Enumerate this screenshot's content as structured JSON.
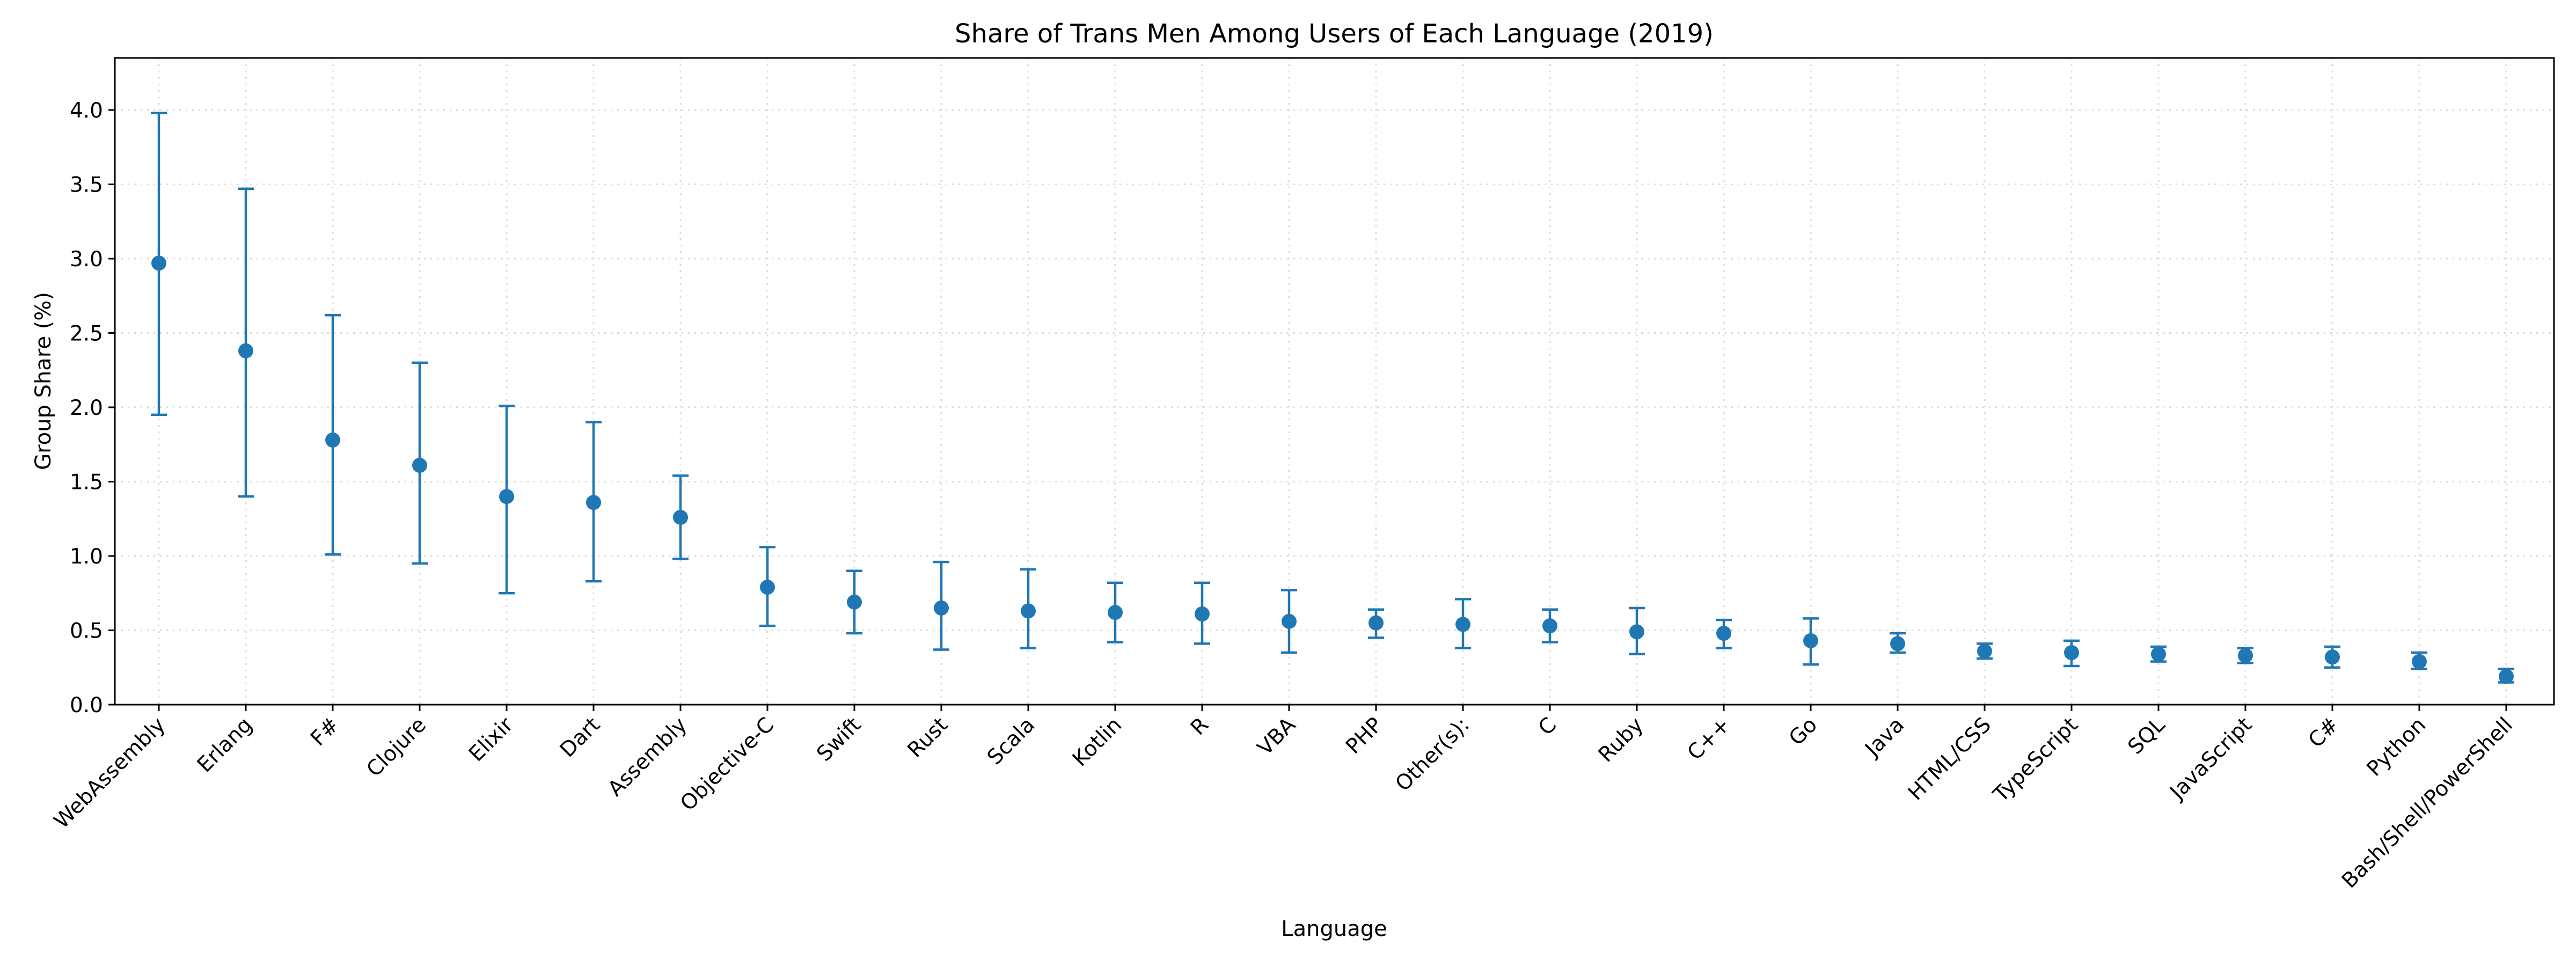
{
  "chart_data": {
    "type": "scatter",
    "title": "Share of Trans Men Among Users of Each Language (2019)",
    "xlabel": "Language",
    "ylabel": "Group Share (%)",
    "ylim": [
      0.0,
      4.35
    ],
    "yticks": [
      0.0,
      0.5,
      1.0,
      1.5,
      2.0,
      2.5,
      3.0,
      3.5,
      4.0
    ],
    "ytick_labels": [
      "0.0",
      "0.5",
      "1.0",
      "1.5",
      "2.0",
      "2.5",
      "3.0",
      "3.5",
      "4.0"
    ],
    "grid": true,
    "error_bars": true,
    "color": "#1f77b4",
    "categories": [
      "WebAssembly",
      "Erlang",
      "F#",
      "Clojure",
      "Elixir",
      "Dart",
      "Assembly",
      "Objective-C",
      "Swift",
      "Rust",
      "Scala",
      "Kotlin",
      "R",
      "VBA",
      "PHP",
      "Other(s):",
      "C",
      "Ruby",
      "C++",
      "Go",
      "Java",
      "HTML/CSS",
      "TypeScript",
      "SQL",
      "JavaScript",
      "C#",
      "Python",
      "Bash/Shell/PowerShell"
    ],
    "values": [
      2.97,
      2.38,
      1.78,
      1.61,
      1.4,
      1.36,
      1.26,
      0.79,
      0.69,
      0.65,
      0.63,
      0.62,
      0.61,
      0.56,
      0.55,
      0.54,
      0.53,
      0.49,
      0.48,
      0.43,
      0.41,
      0.36,
      0.35,
      0.34,
      0.33,
      0.32,
      0.29,
      0.19
    ],
    "lower": [
      1.95,
      1.4,
      1.01,
      0.95,
      0.75,
      0.83,
      0.98,
      0.53,
      0.48,
      0.37,
      0.38,
      0.42,
      0.41,
      0.35,
      0.45,
      0.38,
      0.42,
      0.34,
      0.38,
      0.27,
      0.35,
      0.31,
      0.26,
      0.29,
      0.28,
      0.25,
      0.24,
      0.15
    ],
    "upper": [
      3.98,
      3.47,
      2.62,
      2.3,
      2.01,
      1.9,
      1.54,
      1.06,
      0.9,
      0.96,
      0.91,
      0.82,
      0.82,
      0.77,
      0.64,
      0.71,
      0.64,
      0.65,
      0.57,
      0.58,
      0.48,
      0.41,
      0.43,
      0.39,
      0.38,
      0.39,
      0.35,
      0.24
    ]
  }
}
